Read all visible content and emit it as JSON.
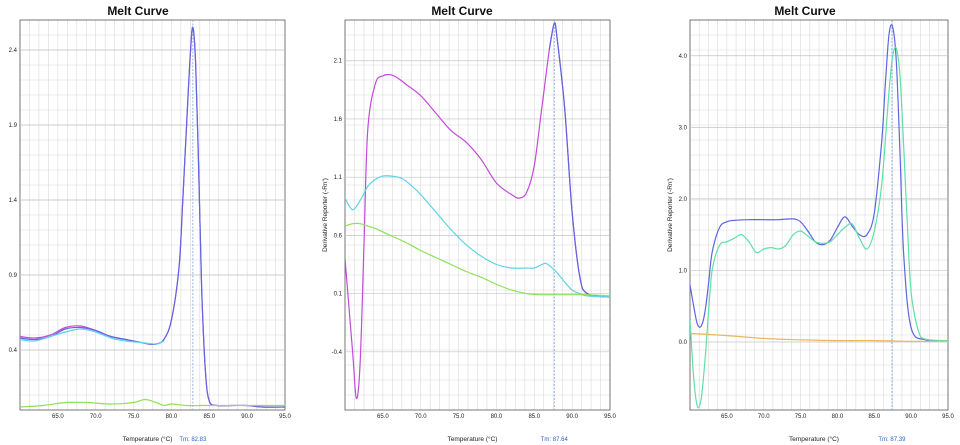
{
  "chart_data": [
    {
      "type": "line",
      "title": "Melt Curve",
      "xlabel": "Temperature (°C)",
      "ylabel": "",
      "xlim": [
        60.0,
        95.0
      ],
      "ylim": [
        0.0,
        2.6
      ],
      "xticks": [
        "65.0",
        "70.0",
        "75.0",
        "80.0",
        "85.0",
        "90.0",
        "95.0"
      ],
      "yticks": [
        "0.4",
        "0.9",
        "1.4",
        "1.9",
        "2.4"
      ],
      "tm_label": "Tm: 82.83",
      "tm_x": 82.83,
      "series": [
        {
          "color": "#c24bd8",
          "x": [
            60,
            62,
            64,
            66,
            68,
            70,
            72,
            74,
            76,
            77,
            78,
            79,
            80,
            81,
            81.5,
            82,
            82.5,
            82.83,
            83.2,
            83.6,
            84,
            84.5,
            85,
            86,
            88,
            90,
            92,
            95
          ],
          "y": [
            0.49,
            0.48,
            0.5,
            0.55,
            0.56,
            0.53,
            0.49,
            0.47,
            0.45,
            0.44,
            0.44,
            0.47,
            0.6,
            0.95,
            1.4,
            1.9,
            2.38,
            2.55,
            2.3,
            1.6,
            0.8,
            0.25,
            0.06,
            0.03,
            0.03,
            0.03,
            0.02,
            0.02
          ]
        },
        {
          "color": "#5f66e0",
          "x": [
            60,
            62,
            64,
            66,
            68,
            70,
            72,
            74,
            76,
            77,
            78,
            79,
            80,
            81,
            81.5,
            82,
            82.5,
            82.83,
            83.2,
            83.6,
            84,
            84.5,
            85,
            86,
            88,
            90,
            92,
            95
          ],
          "y": [
            0.48,
            0.47,
            0.49,
            0.54,
            0.55,
            0.53,
            0.49,
            0.47,
            0.45,
            0.44,
            0.44,
            0.47,
            0.6,
            0.95,
            1.4,
            1.9,
            2.38,
            2.55,
            2.3,
            1.6,
            0.8,
            0.25,
            0.06,
            0.03,
            0.03,
            0.03,
            0.02,
            0.02
          ]
        },
        {
          "color": "#5fd3e8",
          "x": [
            60,
            62,
            64,
            66,
            68,
            70,
            72,
            74,
            76,
            78,
            79
          ],
          "y": [
            0.47,
            0.46,
            0.49,
            0.52,
            0.54,
            0.52,
            0.48,
            0.46,
            0.45,
            0.44,
            0.46
          ]
        },
        {
          "color": "#8ee05a",
          "x": [
            60,
            63,
            66,
            69,
            72,
            75,
            76.5,
            78,
            79,
            80,
            82,
            84,
            86,
            90,
            95
          ],
          "y": [
            0.02,
            0.03,
            0.05,
            0.05,
            0.04,
            0.05,
            0.07,
            0.05,
            0.03,
            0.04,
            0.03,
            0.03,
            0.03,
            0.03,
            0.03
          ]
        }
      ]
    },
    {
      "type": "line",
      "title": "Melt Curve",
      "xlabel": "Temperature (°C)",
      "ylabel": "Derivative Reporter (-Rn')",
      "xlim": [
        60.0,
        95.0
      ],
      "ylim": [
        -0.9,
        2.45
      ],
      "xticks": [
        "65.0",
        "70.0",
        "75.0",
        "80.0",
        "85.0",
        "90.0",
        "95.0"
      ],
      "yticks": [
        "-0.4",
        "0.1",
        "0.6",
        "1.1",
        "1.6",
        "2.1"
      ],
      "tm_label": "Tm: 87.64",
      "tm_x": 87.64,
      "series": [
        {
          "color": "#c24bd8",
          "x": [
            60,
            61,
            61.5,
            62,
            62.5,
            63,
            64,
            65,
            66,
            67,
            68,
            70,
            72,
            74,
            76,
            78,
            80,
            82,
            83,
            84,
            85,
            86,
            87,
            87.64,
            88,
            89,
            90,
            91,
            92,
            95
          ],
          "y": [
            0.4,
            -0.4,
            -0.8,
            -0.5,
            0.5,
            1.5,
            1.9,
            1.97,
            1.98,
            1.95,
            1.9,
            1.8,
            1.65,
            1.5,
            1.4,
            1.25,
            1.05,
            0.95,
            0.92,
            0.97,
            1.2,
            1.7,
            2.2,
            2.42,
            2.3,
            1.7,
            0.8,
            0.25,
            0.1,
            0.07
          ]
        },
        {
          "color": "#5f66e0",
          "x": [
            87,
            87.64,
            88,
            89,
            90,
            91,
            92,
            95
          ],
          "y": [
            2.2,
            2.42,
            2.3,
            1.7,
            0.8,
            0.25,
            0.1,
            0.07
          ]
        },
        {
          "color": "#5fd3e8",
          "x": [
            60,
            61,
            62,
            63,
            64,
            65,
            66,
            67,
            68,
            70,
            72,
            74,
            76,
            78,
            80,
            82,
            84,
            85,
            86,
            86.5,
            87,
            88,
            89,
            90,
            91,
            92,
            95
          ],
          "y": [
            0.92,
            0.82,
            0.9,
            1.02,
            1.08,
            1.11,
            1.11,
            1.1,
            1.07,
            0.95,
            0.8,
            0.65,
            0.52,
            0.42,
            0.35,
            0.32,
            0.32,
            0.32,
            0.35,
            0.36,
            0.34,
            0.28,
            0.2,
            0.13,
            0.1,
            0.08,
            0.07
          ]
        },
        {
          "color": "#8ee05a",
          "x": [
            60,
            61,
            62,
            63,
            64,
            65,
            66,
            68,
            70,
            72,
            74,
            76,
            78,
            80,
            82,
            84,
            86,
            88,
            90,
            92,
            95
          ],
          "y": [
            0.68,
            0.7,
            0.7,
            0.68,
            0.66,
            0.63,
            0.6,
            0.54,
            0.47,
            0.41,
            0.35,
            0.29,
            0.24,
            0.18,
            0.13,
            0.1,
            0.09,
            0.09,
            0.09,
            0.09,
            0.08
          ]
        }
      ]
    },
    {
      "type": "line",
      "title": "Melt Curve",
      "xlabel": "Temperature (°C)",
      "ylabel": "Derivative Reporter (-Rn')",
      "xlim": [
        60.0,
        95.0
      ],
      "ylim": [
        -0.95,
        4.5
      ],
      "xticks": [
        "65.0",
        "70.0",
        "75.0",
        "80.0",
        "85.0",
        "90.0",
        "95.0"
      ],
      "yticks": [
        "0.0",
        "1.0",
        "2.0",
        "3.0",
        "4.0"
      ],
      "tm_label": "Tm: 87.39",
      "tm_x": 87.39,
      "series": [
        {
          "color": "#5f66e0",
          "x": [
            60,
            60.5,
            61,
            61.5,
            62,
            62.5,
            63,
            64,
            65,
            66,
            68,
            70,
            72,
            74,
            75,
            76,
            77,
            78,
            79,
            80,
            81,
            82,
            83,
            84,
            85,
            86,
            86.5,
            87,
            87.5,
            88,
            88.5,
            89,
            90,
            92,
            95
          ],
          "y": [
            0.8,
            0.5,
            0.25,
            0.22,
            0.4,
            0.8,
            1.25,
            1.6,
            1.68,
            1.7,
            1.71,
            1.71,
            1.71,
            1.72,
            1.68,
            1.55,
            1.4,
            1.36,
            1.42,
            1.6,
            1.75,
            1.62,
            1.5,
            1.5,
            1.8,
            2.8,
            3.6,
            4.3,
            4.4,
            3.9,
            2.6,
            1.2,
            0.2,
            0.03,
            0.02
          ]
        },
        {
          "color": "#5ee0a8",
          "x": [
            60,
            60.5,
            61,
            61.5,
            62,
            62.5,
            63,
            64,
            65,
            66,
            67,
            68,
            69,
            70,
            71,
            72,
            73,
            74,
            75,
            76,
            77,
            78,
            79,
            80,
            81,
            82,
            83,
            84,
            85,
            86,
            87,
            87.5,
            88,
            88.5,
            89,
            89.5,
            90,
            91,
            92,
            95
          ],
          "y": [
            0.3,
            -0.5,
            -0.9,
            -0.8,
            -0.3,
            0.4,
            1.0,
            1.35,
            1.4,
            1.45,
            1.5,
            1.4,
            1.25,
            1.3,
            1.32,
            1.3,
            1.35,
            1.5,
            1.55,
            1.48,
            1.4,
            1.38,
            1.4,
            1.5,
            1.6,
            1.65,
            1.45,
            1.3,
            1.55,
            2.2,
            3.5,
            4.0,
            4.1,
            3.7,
            2.7,
            1.6,
            0.7,
            0.15,
            0.04,
            0.02
          ]
        },
        {
          "color": "#e8b95a",
          "x": [
            60,
            65,
            70,
            75,
            80,
            85,
            90,
            95
          ],
          "y": [
            0.12,
            0.09,
            0.05,
            0.03,
            0.02,
            0.02,
            0.01,
            0.01
          ]
        }
      ]
    }
  ]
}
